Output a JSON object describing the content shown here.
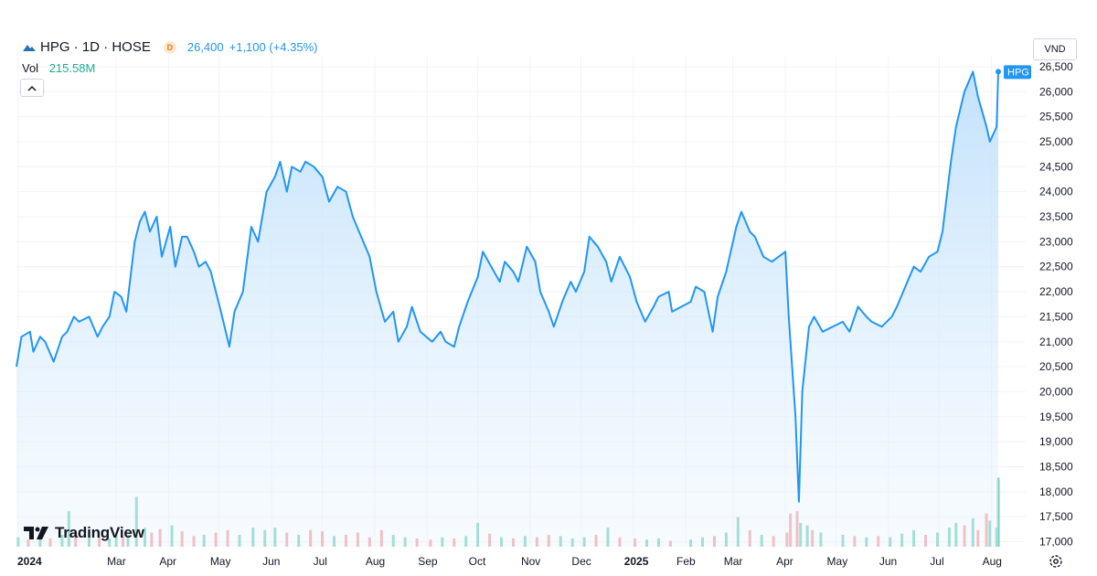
{
  "header": {
    "symbol": "HPG · 1D · HOSE",
    "badge": "D",
    "price": "26,400",
    "change": "+1,100 (+4.35%)",
    "volume_label": "Vol",
    "volume_value": "215.58M",
    "currency": "VND"
  },
  "branding": {
    "logo_text": "TradingView"
  },
  "colors": {
    "line": "#2196f3",
    "area_top": "#bfe0fb",
    "volume_up": "#7dd1bf",
    "volume_down": "#f5a3a3",
    "grid": "#f0f3fa",
    "axis_text": "#131722",
    "price_tag": "#2196f3"
  },
  "chart_data": {
    "type": "area",
    "title": "",
    "symbol_tag": "HPG",
    "xlabel": "",
    "ylabel": "",
    "ylim": [
      16900,
      26700
    ],
    "grid": true,
    "y_ticks": [
      "17,000",
      "17,500",
      "18,000",
      "18,500",
      "19,000",
      "19,500",
      "20,000",
      "20,500",
      "21,000",
      "21,500",
      "22,000",
      "22,500",
      "23,000",
      "23,500",
      "24,000",
      "24,500",
      "25,000",
      "25,500",
      "26,000",
      "26,500"
    ],
    "x_ticks": [
      {
        "label": "2024",
        "date": "2024-01-01",
        "bold": true
      },
      {
        "label": "Mar",
        "date": "2024-03-01",
        "bold": false
      },
      {
        "label": "Apr",
        "date": "2024-04-01",
        "bold": false
      },
      {
        "label": "May",
        "date": "2024-05-01",
        "bold": false
      },
      {
        "label": "Jun",
        "date": "2024-06-01",
        "bold": false
      },
      {
        "label": "Jul",
        "date": "2024-07-01",
        "bold": false
      },
      {
        "label": "Aug",
        "date": "2024-08-01",
        "bold": false
      },
      {
        "label": "Sep",
        "date": "2024-09-01",
        "bold": false
      },
      {
        "label": "Oct",
        "date": "2024-10-01",
        "bold": false
      },
      {
        "label": "Nov",
        "date": "2024-11-01",
        "bold": false
      },
      {
        "label": "Dec",
        "date": "2024-12-01",
        "bold": false
      },
      {
        "label": "2025",
        "date": "2025-01-01",
        "bold": true
      },
      {
        "label": "Feb",
        "date": "2025-02-01",
        "bold": false
      },
      {
        "label": "Mar",
        "date": "2025-03-01",
        "bold": false
      },
      {
        "label": "Apr",
        "date": "2025-04-01",
        "bold": false
      },
      {
        "label": "May",
        "date": "2025-05-01",
        "bold": false
      },
      {
        "label": "Jun",
        "date": "2025-06-01",
        "bold": false
      },
      {
        "label": "Jul",
        "date": "2025-07-01",
        "bold": false
      },
      {
        "label": "Aug",
        "date": "2025-08-01",
        "bold": false
      }
    ],
    "series": [
      {
        "values": [
          [
            "2024-01-02",
            20500
          ],
          [
            "2024-01-05",
            21100
          ],
          [
            "2024-01-10",
            21200
          ],
          [
            "2024-01-12",
            20800
          ],
          [
            "2024-01-16",
            21100
          ],
          [
            "2024-01-19",
            21000
          ],
          [
            "2024-01-24",
            20600
          ],
          [
            "2024-01-29",
            21100
          ],
          [
            "2024-02-01",
            21200
          ],
          [
            "2024-02-05",
            21500
          ],
          [
            "2024-02-08",
            21400
          ],
          [
            "2024-02-14",
            21500
          ],
          [
            "2024-02-19",
            21100
          ],
          [
            "2024-02-22",
            21300
          ],
          [
            "2024-02-26",
            21500
          ],
          [
            "2024-02-29",
            22000
          ],
          [
            "2024-03-04",
            21900
          ],
          [
            "2024-03-07",
            21600
          ],
          [
            "2024-03-12",
            23000
          ],
          [
            "2024-03-15",
            23400
          ],
          [
            "2024-03-18",
            23600
          ],
          [
            "2024-03-21",
            23200
          ],
          [
            "2024-03-25",
            23500
          ],
          [
            "2024-03-28",
            22700
          ],
          [
            "2024-04-02",
            23300
          ],
          [
            "2024-04-05",
            22500
          ],
          [
            "2024-04-09",
            23100
          ],
          [
            "2024-04-12",
            23100
          ],
          [
            "2024-04-16",
            22800
          ],
          [
            "2024-04-19",
            22500
          ],
          [
            "2024-04-23",
            22600
          ],
          [
            "2024-04-26",
            22400
          ],
          [
            "2024-05-02",
            21600
          ],
          [
            "2024-05-07",
            20900
          ],
          [
            "2024-05-10",
            21600
          ],
          [
            "2024-05-15",
            22000
          ],
          [
            "2024-05-20",
            23300
          ],
          [
            "2024-05-24",
            23000
          ],
          [
            "2024-05-29",
            24000
          ],
          [
            "2024-06-03",
            24300
          ],
          [
            "2024-06-06",
            24600
          ],
          [
            "2024-06-10",
            24000
          ],
          [
            "2024-06-13",
            24500
          ],
          [
            "2024-06-18",
            24400
          ],
          [
            "2024-06-21",
            24600
          ],
          [
            "2024-06-26",
            24500
          ],
          [
            "2024-07-01",
            24300
          ],
          [
            "2024-07-05",
            23800
          ],
          [
            "2024-07-10",
            24100
          ],
          [
            "2024-07-15",
            24000
          ],
          [
            "2024-07-19",
            23500
          ],
          [
            "2024-07-24",
            23100
          ],
          [
            "2024-07-29",
            22700
          ],
          [
            "2024-08-02",
            22000
          ],
          [
            "2024-08-07",
            21400
          ],
          [
            "2024-08-12",
            21600
          ],
          [
            "2024-08-15",
            21000
          ],
          [
            "2024-08-20",
            21300
          ],
          [
            "2024-08-23",
            21700
          ],
          [
            "2024-08-28",
            21200
          ],
          [
            "2024-09-04",
            21000
          ],
          [
            "2024-09-09",
            21200
          ],
          [
            "2024-09-12",
            21000
          ],
          [
            "2024-09-17",
            20900
          ],
          [
            "2024-09-20",
            21300
          ],
          [
            "2024-09-25",
            21800
          ],
          [
            "2024-10-01",
            22300
          ],
          [
            "2024-10-04",
            22800
          ],
          [
            "2024-10-09",
            22500
          ],
          [
            "2024-10-14",
            22200
          ],
          [
            "2024-10-17",
            22600
          ],
          [
            "2024-10-22",
            22400
          ],
          [
            "2024-10-25",
            22200
          ],
          [
            "2024-10-30",
            22900
          ],
          [
            "2024-11-04",
            22600
          ],
          [
            "2024-11-07",
            22000
          ],
          [
            "2024-11-12",
            21600
          ],
          [
            "2024-11-15",
            21300
          ],
          [
            "2024-11-20",
            21800
          ],
          [
            "2024-11-25",
            22200
          ],
          [
            "2024-11-28",
            22000
          ],
          [
            "2024-12-03",
            22400
          ],
          [
            "2024-12-06",
            23100
          ],
          [
            "2024-12-11",
            22900
          ],
          [
            "2024-12-16",
            22600
          ],
          [
            "2024-12-19",
            22200
          ],
          [
            "2024-12-24",
            22700
          ],
          [
            "2024-12-30",
            22300
          ],
          [
            "2025-01-03",
            21800
          ],
          [
            "2025-01-08",
            21400
          ],
          [
            "2025-01-13",
            21700
          ],
          [
            "2025-01-16",
            21900
          ],
          [
            "2025-01-22",
            22000
          ],
          [
            "2025-01-24",
            21600
          ],
          [
            "2025-02-04",
            21800
          ],
          [
            "2025-02-07",
            22100
          ],
          [
            "2025-02-12",
            22000
          ],
          [
            "2025-02-17",
            21200
          ],
          [
            "2025-02-20",
            21900
          ],
          [
            "2025-02-25",
            22400
          ],
          [
            "2025-03-03",
            23300
          ],
          [
            "2025-03-06",
            23600
          ],
          [
            "2025-03-11",
            23200
          ],
          [
            "2025-03-14",
            23100
          ],
          [
            "2025-03-19",
            22700
          ],
          [
            "2025-03-24",
            22600
          ],
          [
            "2025-03-28",
            22700
          ],
          [
            "2025-04-01",
            22800
          ],
          [
            "2025-04-03",
            21500
          ],
          [
            "2025-04-07",
            19500
          ],
          [
            "2025-04-09",
            17800
          ],
          [
            "2025-04-11",
            20000
          ],
          [
            "2025-04-15",
            21300
          ],
          [
            "2025-04-18",
            21500
          ],
          [
            "2025-04-23",
            21200
          ],
          [
            "2025-05-05",
            21400
          ],
          [
            "2025-05-09",
            21200
          ],
          [
            "2025-05-14",
            21700
          ],
          [
            "2025-05-19",
            21500
          ],
          [
            "2025-05-22",
            21400
          ],
          [
            "2025-05-28",
            21300
          ],
          [
            "2025-06-03",
            21500
          ],
          [
            "2025-06-06",
            21700
          ],
          [
            "2025-06-11",
            22100
          ],
          [
            "2025-06-16",
            22500
          ],
          [
            "2025-06-20",
            22400
          ],
          [
            "2025-06-25",
            22700
          ],
          [
            "2025-06-30",
            22800
          ],
          [
            "2025-07-03",
            23200
          ],
          [
            "2025-07-08",
            24600
          ],
          [
            "2025-07-11",
            25300
          ],
          [
            "2025-07-16",
            26000
          ],
          [
            "2025-07-21",
            26400
          ],
          [
            "2025-07-24",
            25900
          ],
          [
            "2025-07-29",
            25300
          ],
          [
            "2025-07-31",
            25000
          ],
          [
            "2025-08-04",
            25300
          ],
          [
            "2025-08-05",
            26400
          ]
        ]
      }
    ],
    "volume": {
      "ylim": [
        0,
        60
      ],
      "values": [
        [
          "2024-01-03",
          8,
          "up"
        ],
        [
          "2024-01-09",
          6,
          "down"
        ],
        [
          "2024-01-16",
          9,
          "up"
        ],
        [
          "2024-01-22",
          7,
          "down"
        ],
        [
          "2024-01-29",
          10,
          "up"
        ],
        [
          "2024-02-02",
          30,
          "up"
        ],
        [
          "2024-02-06",
          12,
          "down"
        ],
        [
          "2024-02-14",
          8,
          "up"
        ],
        [
          "2024-02-20",
          9,
          "down"
        ],
        [
          "2024-02-26",
          7,
          "up"
        ],
        [
          "2024-03-01",
          12,
          "up"
        ],
        [
          "2024-03-05",
          9,
          "down"
        ],
        [
          "2024-03-08",
          10,
          "up"
        ],
        [
          "2024-03-13",
          42,
          "up"
        ],
        [
          "2024-03-18",
          16,
          "up"
        ],
        [
          "2024-03-22",
          12,
          "down"
        ],
        [
          "2024-03-27",
          15,
          "down"
        ],
        [
          "2024-04-03",
          18,
          "up"
        ],
        [
          "2024-04-09",
          13,
          "down"
        ],
        [
          "2024-04-16",
          9,
          "down"
        ],
        [
          "2024-04-22",
          10,
          "up"
        ],
        [
          "2024-04-29",
          12,
          "down"
        ],
        [
          "2024-05-06",
          14,
          "down"
        ],
        [
          "2024-05-13",
          10,
          "up"
        ],
        [
          "2024-05-21",
          16,
          "up"
        ],
        [
          "2024-05-28",
          14,
          "up"
        ],
        [
          "2024-06-03",
          16,
          "up"
        ],
        [
          "2024-06-10",
          12,
          "down"
        ],
        [
          "2024-06-17",
          10,
          "up"
        ],
        [
          "2024-06-24",
          14,
          "down"
        ],
        [
          "2024-07-01",
          13,
          "down"
        ],
        [
          "2024-07-08",
          9,
          "up"
        ],
        [
          "2024-07-15",
          10,
          "down"
        ],
        [
          "2024-07-22",
          12,
          "down"
        ],
        [
          "2024-07-29",
          8,
          "down"
        ],
        [
          "2024-08-05",
          14,
          "down"
        ],
        [
          "2024-08-12",
          10,
          "up"
        ],
        [
          "2024-08-19",
          8,
          "up"
        ],
        [
          "2024-08-26",
          7,
          "down"
        ],
        [
          "2024-09-03",
          6,
          "down"
        ],
        [
          "2024-09-10",
          8,
          "up"
        ],
        [
          "2024-09-17",
          7,
          "down"
        ],
        [
          "2024-09-24",
          9,
          "up"
        ],
        [
          "2024-10-01",
          20,
          "up"
        ],
        [
          "2024-10-08",
          11,
          "down"
        ],
        [
          "2024-10-15",
          8,
          "up"
        ],
        [
          "2024-10-22",
          7,
          "down"
        ],
        [
          "2024-10-29",
          9,
          "up"
        ],
        [
          "2024-11-05",
          8,
          "down"
        ],
        [
          "2024-11-12",
          10,
          "down"
        ],
        [
          "2024-11-19",
          9,
          "up"
        ],
        [
          "2024-11-26",
          7,
          "up"
        ],
        [
          "2024-12-03",
          8,
          "up"
        ],
        [
          "2024-12-10",
          10,
          "down"
        ],
        [
          "2024-12-17",
          16,
          "up"
        ],
        [
          "2024-12-24",
          8,
          "down"
        ],
        [
          "2025-01-02",
          7,
          "down"
        ],
        [
          "2025-01-09",
          6,
          "up"
        ],
        [
          "2025-01-16",
          7,
          "up"
        ],
        [
          "2025-01-23",
          5,
          "down"
        ],
        [
          "2025-02-04",
          6,
          "up"
        ],
        [
          "2025-02-11",
          8,
          "up"
        ],
        [
          "2025-02-18",
          9,
          "down"
        ],
        [
          "2025-02-25",
          12,
          "up"
        ],
        [
          "2025-03-04",
          25,
          "up"
        ],
        [
          "2025-03-11",
          14,
          "down"
        ],
        [
          "2025-03-18",
          10,
          "up"
        ],
        [
          "2025-03-25",
          9,
          "down"
        ],
        [
          "2025-04-02",
          12,
          "down"
        ],
        [
          "2025-04-04",
          28,
          "down"
        ],
        [
          "2025-04-08",
          30,
          "down"
        ],
        [
          "2025-04-10",
          20,
          "up"
        ],
        [
          "2025-04-14",
          18,
          "up"
        ],
        [
          "2025-04-17",
          14,
          "down"
        ],
        [
          "2025-04-22",
          12,
          "up"
        ],
        [
          "2025-05-05",
          10,
          "up"
        ],
        [
          "2025-05-12",
          9,
          "down"
        ],
        [
          "2025-05-19",
          8,
          "up"
        ],
        [
          "2025-05-26",
          9,
          "down"
        ],
        [
          "2025-06-02",
          8,
          "up"
        ],
        [
          "2025-06-09",
          11,
          "up"
        ],
        [
          "2025-06-16",
          14,
          "up"
        ],
        [
          "2025-06-23",
          10,
          "down"
        ],
        [
          "2025-06-30",
          12,
          "up"
        ],
        [
          "2025-07-07",
          16,
          "up"
        ],
        [
          "2025-07-11",
          20,
          "up"
        ],
        [
          "2025-07-16",
          18,
          "down"
        ],
        [
          "2025-07-21",
          24,
          "up"
        ],
        [
          "2025-07-24",
          14,
          "down"
        ],
        [
          "2025-07-29",
          28,
          "down"
        ],
        [
          "2025-07-31",
          22,
          "up"
        ],
        [
          "2025-08-04",
          16,
          "up"
        ],
        [
          "2025-08-05",
          58,
          "up"
        ]
      ]
    }
  }
}
